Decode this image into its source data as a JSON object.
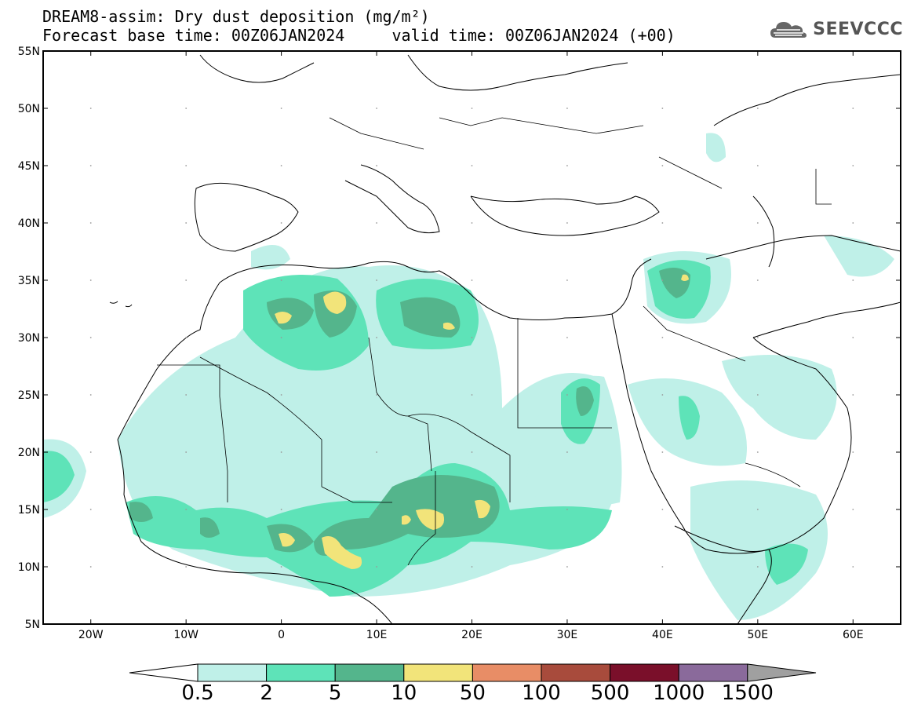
{
  "title_line1": "DREAM8-assim: Dry dust deposition (mg/m²)",
  "title_line2": "Forecast base time: 00Z06JAN2024     valid time: 00Z06JAN2024 (+00)",
  "logo_text": "SEEVCCC",
  "map": {
    "lon_range": [
      -25,
      65
    ],
    "lat_range": [
      5,
      55
    ],
    "lon_ticks": [
      "20W",
      "10W",
      "0",
      "10E",
      "20E",
      "30E",
      "40E",
      "50E",
      "60E"
    ],
    "lat_ticks": [
      "55N",
      "50N",
      "45N",
      "40N",
      "35N",
      "30N",
      "25N",
      "20N",
      "15N",
      "10N",
      "5N"
    ]
  },
  "colorbar": {
    "labels": [
      "0.5",
      "2",
      "5",
      "10",
      "50",
      "100",
      "500",
      "1000",
      "1500"
    ],
    "colors": [
      "#bff0e8",
      "#5ee3b8",
      "#54b58c",
      "#f2e47a",
      "#e88d66",
      "#a84b3c",
      "#7a0f2a",
      "#8a6a9b",
      "#a0a0a0"
    ]
  }
}
